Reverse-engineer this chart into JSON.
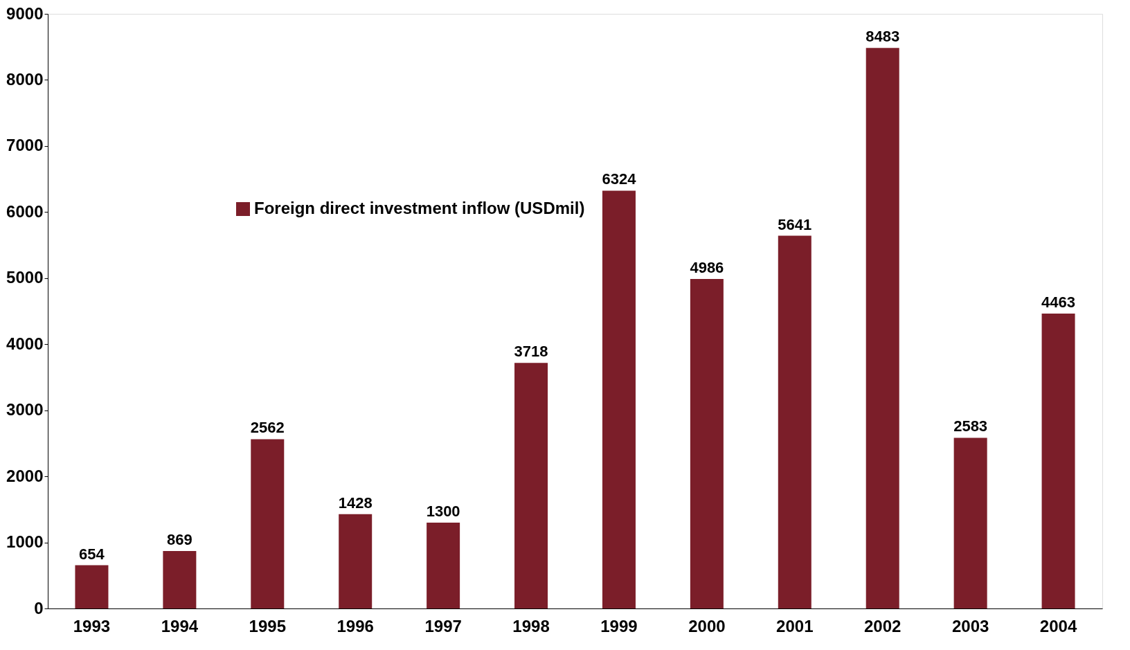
{
  "chart_data": {
    "type": "bar",
    "categories": [
      "1993",
      "1994",
      "1995",
      "1996",
      "1997",
      "1998",
      "1999",
      "2000",
      "2001",
      "2002",
      "2003",
      "2004"
    ],
    "series": [
      {
        "name": "Foreign direct investment inflow (USDmil)",
        "color": "#7b1e29",
        "values": [
          654,
          869,
          2562,
          1428,
          1300,
          3718,
          6324,
          4986,
          5641,
          8483,
          2583,
          4463
        ]
      }
    ],
    "ylim": [
      0,
      9000
    ],
    "yticks": [
      0,
      1000,
      2000,
      3000,
      4000,
      5000,
      6000,
      7000,
      8000,
      9000
    ],
    "data_labels": true,
    "grid": false,
    "legend": "top left"
  }
}
